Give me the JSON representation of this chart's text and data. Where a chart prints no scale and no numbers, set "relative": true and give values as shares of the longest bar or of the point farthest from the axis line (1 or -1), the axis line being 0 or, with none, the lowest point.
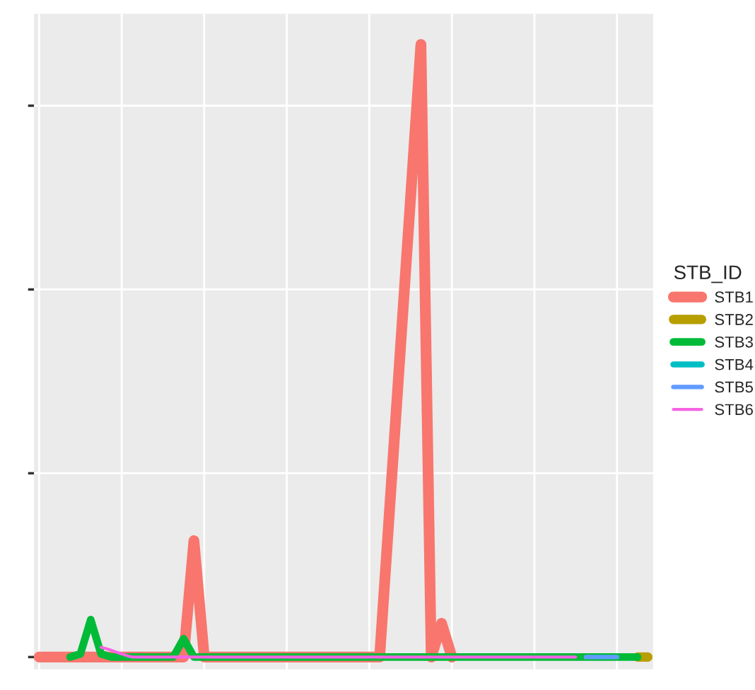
{
  "chart_data": {
    "type": "line",
    "relative": true,
    "grid": true,
    "legend": "right",
    "legend_title": "STB_ID",
    "tick_labels": false,
    "categories": [
      null,
      null,
      null,
      null,
      null,
      null,
      null,
      null,
      null,
      null,
      null,
      null,
      null,
      null,
      null,
      null,
      null,
      null,
      null,
      null,
      null,
      null,
      null,
      null,
      null,
      null,
      null,
      null,
      null,
      null,
      null,
      null,
      null,
      null,
      null,
      null,
      null,
      null,
      null,
      null,
      null,
      null,
      null,
      null,
      null,
      null,
      null,
      null,
      null,
      null,
      null,
      null,
      null,
      null,
      null,
      null,
      null,
      null,
      null,
      null
    ],
    "series": [
      {
        "name": "STB1",
        "color": "#f8766d",
        "values": [
          0,
          0,
          0,
          0,
          0,
          0,
          0,
          0,
          0,
          0,
          0,
          0,
          0,
          0,
          0,
          0.19,
          0,
          0,
          0,
          0,
          0,
          0,
          0,
          0,
          0,
          0,
          0,
          0,
          0,
          0,
          0,
          0,
          0,
          0,
          0.25,
          0.5,
          0.75,
          1.0,
          0,
          0.055,
          0,
          null,
          null,
          null,
          null,
          null,
          null,
          null,
          null,
          null,
          null,
          null,
          null,
          null,
          null,
          null,
          null,
          null,
          null,
          null
        ]
      },
      {
        "name": "STB2",
        "color": "#b79f00",
        "values": [
          null,
          null,
          null,
          null,
          null,
          null,
          null,
          null,
          null,
          null,
          null,
          null,
          null,
          null,
          null,
          null,
          null,
          null,
          null,
          null,
          null,
          null,
          null,
          null,
          null,
          null,
          null,
          null,
          null,
          null,
          null,
          null,
          null,
          null,
          null,
          null,
          null,
          null,
          null,
          null,
          null,
          null,
          null,
          null,
          null,
          null,
          null,
          null,
          null,
          null,
          null,
          null,
          null,
          null,
          null,
          null,
          null,
          null,
          0,
          0
        ]
      },
      {
        "name": "STB3",
        "color": "#00ba38",
        "values": [
          null,
          null,
          null,
          0,
          0.005,
          0.061,
          0.005,
          0,
          0,
          0,
          0,
          0,
          0,
          0,
          0.03,
          0,
          0,
          0,
          0,
          0,
          0,
          0,
          0,
          0,
          0,
          0,
          0,
          0,
          0,
          0,
          0,
          0,
          0,
          0,
          0,
          0,
          0,
          0,
          0,
          0,
          0,
          0,
          0,
          0,
          0,
          0,
          0,
          0,
          0,
          0,
          0,
          0,
          0,
          0,
          0,
          0,
          0,
          0,
          0,
          null
        ]
      },
      {
        "name": "STB4",
        "color": "#00bfc4",
        "values": [
          null,
          null,
          null,
          null,
          null,
          null,
          null,
          null,
          null,
          null,
          null,
          null,
          null,
          null,
          null,
          null,
          null,
          null,
          null,
          null,
          null,
          null,
          null,
          null,
          null,
          null,
          null,
          null,
          null,
          null,
          null,
          null,
          null,
          null,
          null,
          null,
          null,
          null,
          null,
          null,
          null,
          null,
          null,
          null,
          null,
          null,
          null,
          null,
          null,
          null,
          null,
          null,
          null,
          null,
          null,
          null,
          null,
          null,
          null,
          null
        ]
      },
      {
        "name": "STB5",
        "color": "#619cff",
        "values": [
          null,
          null,
          null,
          null,
          null,
          null,
          null,
          null,
          null,
          null,
          null,
          null,
          null,
          null,
          null,
          null,
          null,
          null,
          null,
          null,
          null,
          null,
          null,
          null,
          null,
          null,
          null,
          null,
          null,
          null,
          null,
          null,
          null,
          null,
          null,
          null,
          null,
          null,
          null,
          null,
          null,
          null,
          null,
          null,
          null,
          null,
          null,
          null,
          null,
          null,
          null,
          null,
          null,
          0,
          0,
          0,
          0,
          null,
          null,
          null
        ]
      },
      {
        "name": "STB6",
        "color": "#f564e3",
        "values": [
          null,
          null,
          null,
          null,
          null,
          null,
          0.016,
          0.011,
          0.005,
          0,
          0,
          0,
          0,
          0,
          0,
          0,
          0,
          0,
          0,
          0,
          0,
          0,
          0,
          0,
          0,
          0,
          0,
          0,
          0,
          0,
          0,
          0,
          0,
          0,
          0,
          0,
          0,
          0,
          0,
          0,
          0,
          0,
          0,
          0,
          0,
          0,
          0,
          0,
          0,
          0,
          0,
          0,
          0,
          null,
          null,
          null,
          null,
          null,
          null,
          null
        ]
      }
    ]
  }
}
